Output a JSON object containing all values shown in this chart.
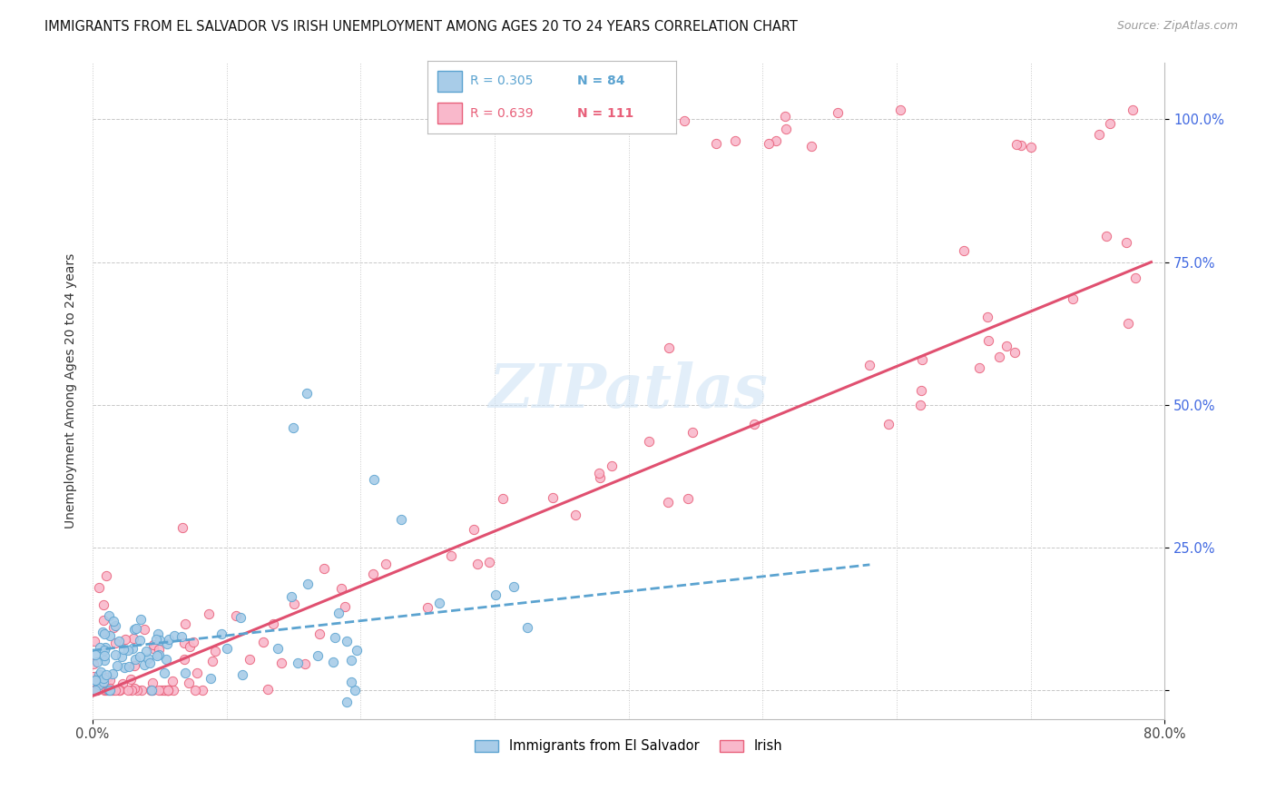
{
  "title": "IMMIGRANTS FROM EL SALVADOR VS IRISH UNEMPLOYMENT AMONG AGES 20 TO 24 YEARS CORRELATION CHART",
  "source": "Source: ZipAtlas.com",
  "ylabel": "Unemployment Among Ages 20 to 24 years",
  "xlim": [
    0.0,
    0.8
  ],
  "ylim": [
    -0.05,
    1.1
  ],
  "ytick_vals": [
    0.0,
    0.25,
    0.5,
    0.75,
    1.0
  ],
  "ytick_labels": [
    "",
    "25.0%",
    "50.0%",
    "75.0%",
    "100.0%"
  ],
  "xtick_vals": [
    0.0,
    0.8
  ],
  "xtick_labels": [
    "0.0%",
    "80.0%"
  ],
  "color_blue_fill": "#a8cce8",
  "color_blue_edge": "#5ba3d0",
  "color_pink_fill": "#f9b8cb",
  "color_pink_edge": "#e8607a",
  "color_pink_line": "#e05070",
  "color_blue_line": "#5ba3d0",
  "color_yticklabel": "#4169E1",
  "color_grid": "#c8c8c8",
  "watermark_text": "ZIPatlas",
  "watermark_color": "#d0e4f5",
  "legend_r1": "R = 0.305",
  "legend_n1": "N = 84",
  "legend_r2": "R = 0.639",
  "legend_n2": "N = 111",
  "blue_n": 84,
  "pink_n": 111
}
